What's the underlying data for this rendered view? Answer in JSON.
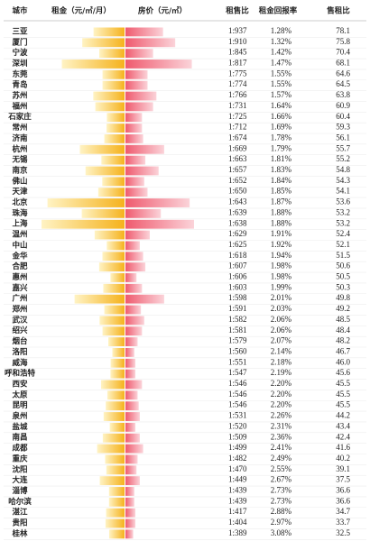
{
  "table": {
    "header": [
      "城市",
      "租金（元/㎡/月）",
      "房价（元/㎡）",
      "租售比",
      "租金回报率",
      "售租比"
    ],
    "rows": [
      {
        "city": "三亚",
        "rent": 36.3,
        "price": 34000,
        "ratio": "1:937",
        "return": "1.28%",
        "sale_rent": "78.1"
      },
      {
        "city": "厦门",
        "rent": 49.5,
        "price": 45000,
        "ratio": "1:910",
        "return": "1.32%",
        "sale_rent": "75.8"
      },
      {
        "city": "宁波",
        "rent": 29.6,
        "price": 25000,
        "ratio": "1:845",
        "return": "1.42%",
        "sale_rent": "70.4"
      },
      {
        "city": "深圳",
        "rent": 73.4,
        "price": 60000,
        "ratio": "1:817",
        "return": "1.47%",
        "sale_rent": "68.1"
      },
      {
        "city": "东莞",
        "rent": 25.8,
        "price": 20000,
        "ratio": "1:775",
        "return": "1.55%",
        "sale_rent": "64.6"
      },
      {
        "city": "青岛",
        "rent": 25.8,
        "price": 20000,
        "ratio": "1:774",
        "return": "1.55%",
        "sale_rent": "64.5"
      },
      {
        "city": "苏州",
        "rent": 36.6,
        "price": 28000,
        "ratio": "1:766",
        "return": "1.57%",
        "sale_rent": "63.8"
      },
      {
        "city": "福州",
        "rent": 34.2,
        "price": 25000,
        "ratio": "1:731",
        "return": "1.64%",
        "sale_rent": "60.9"
      },
      {
        "city": "石家庄",
        "rent": 20.7,
        "price": 15000,
        "ratio": "1:725",
        "return": "1.66%",
        "sale_rent": "60.4"
      },
      {
        "city": "常州",
        "rent": 21.1,
        "price": 15000,
        "ratio": "1:712",
        "return": "1.69%",
        "sale_rent": "59.3"
      },
      {
        "city": "济南",
        "rent": 23.7,
        "price": 16000,
        "ratio": "1:674",
        "return": "1.78%",
        "sale_rent": "56.1"
      },
      {
        "city": "杭州",
        "rent": 52.3,
        "price": 35000,
        "ratio": "1:669",
        "return": "1.79%",
        "sale_rent": "55.7"
      },
      {
        "city": "无锡",
        "rent": 27.1,
        "price": 18000,
        "ratio": "1:663",
        "return": "1.81%",
        "sale_rent": "55.2"
      },
      {
        "city": "南京",
        "rent": 45.7,
        "price": 30000,
        "ratio": "1:657",
        "return": "1.83%",
        "sale_rent": "54.8"
      },
      {
        "city": "佛山",
        "rent": 26.1,
        "price": 17000,
        "ratio": "1:652",
        "return": "1.84%",
        "sale_rent": "54.3"
      },
      {
        "city": "天津",
        "rent": 30.8,
        "price": 20000,
        "ratio": "1:650",
        "return": "1.85%",
        "sale_rent": "54.1"
      },
      {
        "city": "北京",
        "rent": 90.2,
        "price": 58000,
        "ratio": "1:643",
        "return": "1.87%",
        "sale_rent": "53.6"
      },
      {
        "city": "珠海",
        "rent": 50.1,
        "price": 32000,
        "ratio": "1:639",
        "return": "1.88%",
        "sale_rent": "53.2"
      },
      {
        "city": "上海",
        "rent": 97.2,
        "price": 62000,
        "ratio": "1:638",
        "return": "1.88%",
        "sale_rent": "53.2"
      },
      {
        "city": "温州",
        "rent": 35.0,
        "price": 22000,
        "ratio": "1:629",
        "return": "1.91%",
        "sale_rent": "52.4"
      },
      {
        "city": "中山",
        "rent": 20.8,
        "price": 13000,
        "ratio": "1:625",
        "return": "1.92%",
        "sale_rent": "52.1"
      },
      {
        "city": "金华",
        "rent": 25.9,
        "price": 16000,
        "ratio": "1:618",
        "return": "1.94%",
        "sale_rent": "51.5"
      },
      {
        "city": "合肥",
        "rent": 29.7,
        "price": 18000,
        "ratio": "1:607",
        "return": "1.98%",
        "sale_rent": "50.6"
      },
      {
        "city": "惠州",
        "rent": 16.5,
        "price": 10000,
        "ratio": "1:606",
        "return": "1.98%",
        "sale_rent": "50.5"
      },
      {
        "city": "嘉兴",
        "rent": 24.9,
        "price": 15000,
        "ratio": "1:603",
        "return": "1.99%",
        "sale_rent": "50.3"
      },
      {
        "city": "广州",
        "rent": 58.5,
        "price": 35000,
        "ratio": "1:598",
        "return": "2.01%",
        "sale_rent": "49.8"
      },
      {
        "city": "郑州",
        "rent": 23.7,
        "price": 14000,
        "ratio": "1:591",
        "return": "2.03%",
        "sale_rent": "49.2"
      },
      {
        "city": "武汉",
        "rent": 29.2,
        "price": 17000,
        "ratio": "1:582",
        "return": "2.06%",
        "sale_rent": "48.5"
      },
      {
        "city": "绍兴",
        "rent": 25.8,
        "price": 15000,
        "ratio": "1:581",
        "return": "2.06%",
        "sale_rent": "48.4"
      },
      {
        "city": "烟台",
        "rent": 19.0,
        "price": 11000,
        "ratio": "1:579",
        "return": "2.07%",
        "sale_rent": "48.2"
      },
      {
        "city": "洛阳",
        "rent": 14.3,
        "price": 8000,
        "ratio": "1:560",
        "return": "2.14%",
        "sale_rent": "46.7"
      },
      {
        "city": "威海",
        "rent": 16.3,
        "price": 9000,
        "ratio": "1:551",
        "return": "2.18%",
        "sale_rent": "46.0"
      },
      {
        "city": "呼和浩特",
        "rent": 16.5,
        "price": 9000,
        "ratio": "1:547",
        "return": "2.19%",
        "sale_rent": "45.6"
      },
      {
        "city": "西安",
        "rent": 27.5,
        "price": 15000,
        "ratio": "1:546",
        "return": "2.20%",
        "sale_rent": "45.5"
      },
      {
        "city": "太原",
        "rent": 20.1,
        "price": 11000,
        "ratio": "1:546",
        "return": "2.20%",
        "sale_rent": "45.5"
      },
      {
        "city": "昆明",
        "rent": 22.0,
        "price": 12000,
        "ratio": "1:546",
        "return": "2.20%",
        "sale_rent": "45.5"
      },
      {
        "city": "泉州",
        "rent": 24.5,
        "price": 13000,
        "ratio": "1:531",
        "return": "2.26%",
        "sale_rent": "44.2"
      },
      {
        "city": "盐城",
        "rent": 17.3,
        "price": 9000,
        "ratio": "1:520",
        "return": "2.31%",
        "sale_rent": "43.4"
      },
      {
        "city": "南昌",
        "rent": 25.5,
        "price": 13000,
        "ratio": "1:509",
        "return": "2.36%",
        "sale_rent": "42.4"
      },
      {
        "city": "成都",
        "rent": 32.1,
        "price": 16000,
        "ratio": "1:499",
        "return": "2.41%",
        "sale_rent": "41.6"
      },
      {
        "city": "重庆",
        "rent": 22.8,
        "price": 11000,
        "ratio": "1:482",
        "return": "2.49%",
        "sale_rent": "40.2"
      },
      {
        "city": "沈阳",
        "rent": 21.3,
        "price": 10000,
        "ratio": "1:470",
        "return": "2.55%",
        "sale_rent": "39.1"
      },
      {
        "city": "大连",
        "rent": 29.0,
        "price": 13000,
        "ratio": "1:449",
        "return": "2.67%",
        "sale_rent": "37.5"
      },
      {
        "city": "淄博",
        "rent": 18.2,
        "price": 8000,
        "ratio": "1:439",
        "return": "2.73%",
        "sale_rent": "36.6"
      },
      {
        "city": "哈尔滨",
        "rent": 18.2,
        "price": 8000,
        "ratio": "1:439",
        "return": "2.73%",
        "sale_rent": "36.6"
      },
      {
        "city": "湛江",
        "rent": 21.6,
        "price": 9000,
        "ratio": "1:417",
        "return": "2.88%",
        "sale_rent": "34.7"
      },
      {
        "city": "贵阳",
        "rent": 22.3,
        "price": 9000,
        "ratio": "1:404",
        "return": "2.97%",
        "sale_rent": "33.7"
      },
      {
        "city": "桂林",
        "rent": 18.0,
        "price": 7000,
        "ratio": "1:389",
        "return": "3.08%",
        "sale_rent": "32.5"
      }
    ]
  }
}
